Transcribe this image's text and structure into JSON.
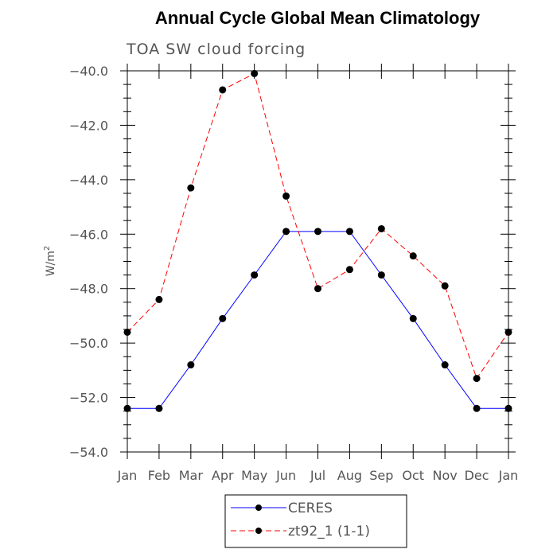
{
  "chart_data": {
    "type": "line",
    "title": "Annual Cycle Global Mean Climatology",
    "subtitle": "TOA SW cloud forcing",
    "ylabel": "W/m",
    "ylabel_sup": "2",
    "ylim": [
      -54.0,
      -40.0
    ],
    "yticks": [
      "-54.0",
      "-52.0",
      "-50.0",
      "-48.0",
      "-46.0",
      "-44.0",
      "-42.0",
      "-40.0"
    ],
    "ytick_values": [
      -54,
      -52,
      -50,
      -48,
      -46,
      -44,
      -42,
      -40
    ],
    "categories": [
      "Jan",
      "Feb",
      "Mar",
      "Apr",
      "May",
      "Jun",
      "Jul",
      "Aug",
      "Sep",
      "Oct",
      "Nov",
      "Dec",
      "Jan"
    ],
    "grid": false,
    "legend_position": "bottom-center",
    "series": [
      {
        "name": "CERES",
        "color": "#0000ff",
        "dash": "solid",
        "values": [
          -52.4,
          -52.4,
          -50.8,
          -49.1,
          -47.5,
          -45.9,
          -45.9,
          -45.9,
          -47.5,
          -49.1,
          -50.8,
          -52.4,
          -52.4
        ]
      },
      {
        "name": "zt92_1 (1-1)",
        "color": "#ff0000",
        "dash": "dashed",
        "values": [
          -49.6,
          -48.4,
          -44.3,
          -40.7,
          -40.1,
          -44.6,
          -48.0,
          -47.3,
          -45.8,
          -46.8,
          -47.9,
          -51.3,
          -49.6
        ]
      }
    ]
  }
}
